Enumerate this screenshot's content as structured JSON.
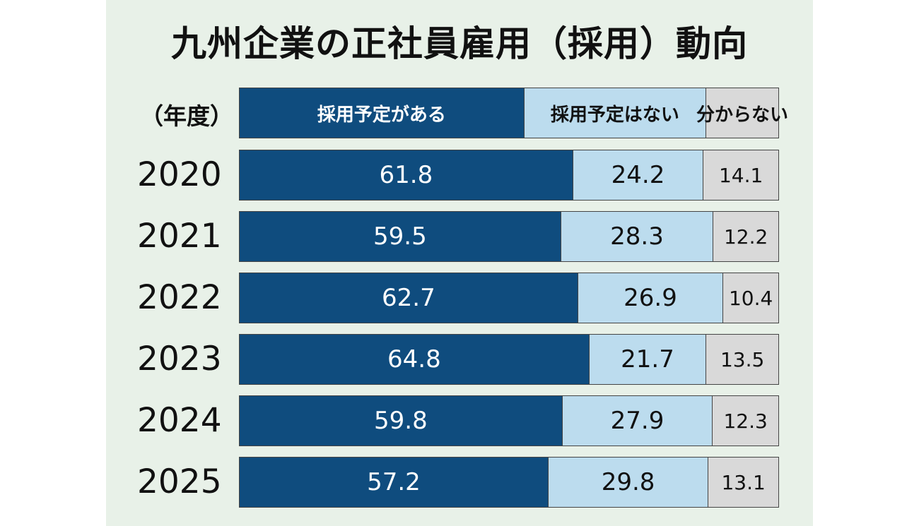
{
  "title": "九州企業の正社員雇用（採用）動向",
  "unit_label": "（年度）",
  "colors": {
    "background": "#e8f1e8",
    "series": [
      "#0f4c7e",
      "#bcdcee",
      "#d9d9d9"
    ],
    "text_on_series": [
      "#ffffff",
      "#111111",
      "#111111"
    ]
  },
  "chart_data": {
    "type": "bar",
    "orientation": "horizontal",
    "stacked": true,
    "categories": [
      "2020",
      "2021",
      "2022",
      "2023",
      "2024",
      "2025"
    ],
    "series": [
      {
        "name": "採用予定がある",
        "values": [
          "61.8",
          "59.5",
          "62.7",
          "64.8",
          "59.8",
          "57.2"
        ]
      },
      {
        "name": "採用予定はない",
        "values": [
          "24.2",
          "28.3",
          "26.9",
          "21.7",
          "27.9",
          "29.8"
        ]
      },
      {
        "name": "分からない",
        "values": [
          "14.1",
          "12.2",
          "10.4",
          "13.5",
          "12.3",
          "13.1"
        ]
      }
    ],
    "legend": "top"
  }
}
